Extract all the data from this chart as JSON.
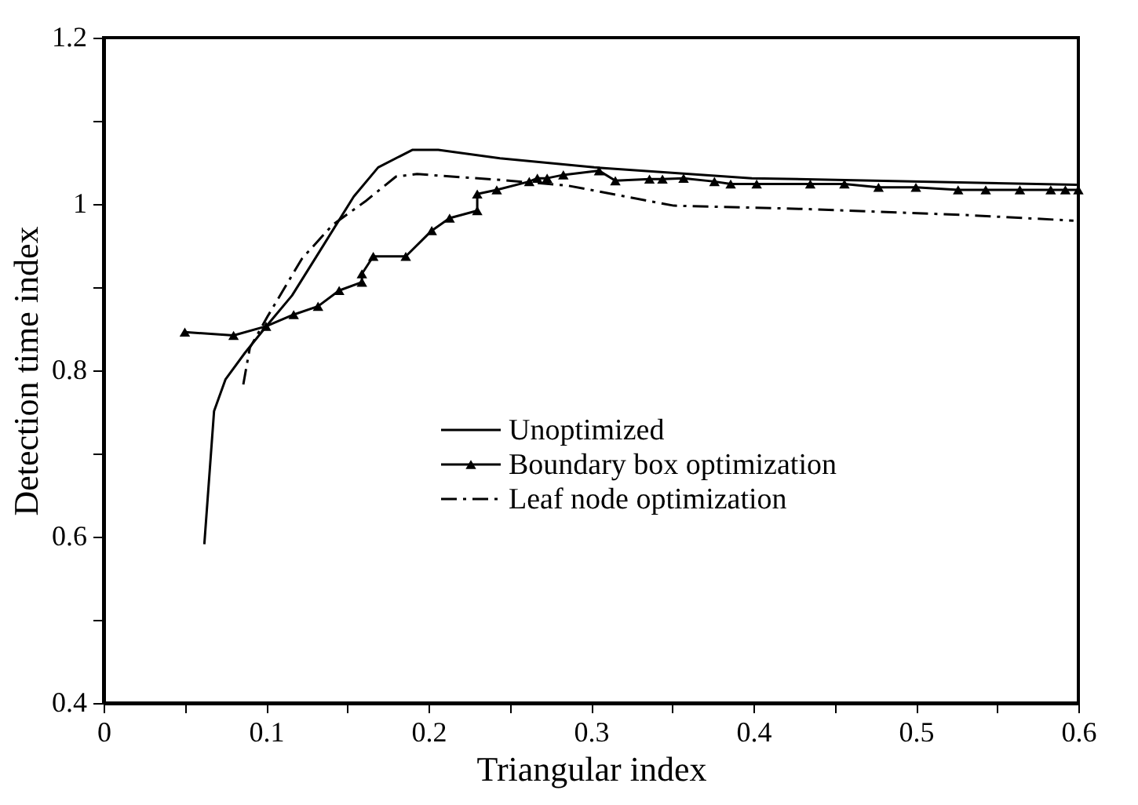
{
  "chart_data": {
    "type": "line",
    "xlabel": "Triangular index",
    "ylabel": "Detection time index",
    "xlim": [
      0,
      0.6
    ],
    "ylim": [
      0.4,
      1.2
    ],
    "xticks": [
      0,
      {
        "value": 0.05,
        "label": null
      },
      0.1,
      {
        "value": 0.15,
        "label": null
      },
      0.2,
      {
        "value": 0.25,
        "label": null
      },
      0.3,
      {
        "value": 0.35,
        "label": null
      },
      0.4,
      {
        "value": 0.45,
        "label": null
      },
      0.5,
      {
        "value": 0.55,
        "label": null
      },
      0.6
    ],
    "yticks": [
      0.4,
      {
        "value": 0.5,
        "label": null
      },
      0.6,
      {
        "value": 0.7,
        "label": null
      },
      0.8,
      {
        "value": 0.9,
        "label": null
      },
      1,
      {
        "value": 1.1,
        "label": null
      },
      1.2
    ],
    "grid": false,
    "legend": "right",
    "series": [
      {
        "name": "Unoptimized",
        "color": "#000000",
        "line_style": "solid",
        "marker": "none",
        "x": [
          0.062,
          0.068,
          0.075,
          0.087,
          0.101,
          0.116,
          0.132,
          0.154,
          0.169,
          0.19,
          0.206,
          0.244,
          0.302,
          0.399,
          0.599
        ],
        "values": [
          0.591,
          0.751,
          0.789,
          0.821,
          0.855,
          0.89,
          0.94,
          1.009,
          1.044,
          1.065,
          1.065,
          1.055,
          1.044,
          1.031,
          1.023
        ]
      },
      {
        "name": "Boundary box optimization",
        "color": "#000000",
        "line_style": "solid",
        "marker": "triangle",
        "x": [
          0.05,
          0.08,
          0.1,
          0.117,
          0.132,
          0.145,
          0.159,
          0.159,
          0.166,
          0.186,
          0.202,
          0.213,
          0.23,
          0.23,
          0.242,
          0.262,
          0.267,
          0.273,
          0.283,
          0.305,
          0.315,
          0.336,
          0.344,
          0.357,
          0.376,
          0.386,
          0.402,
          0.435,
          0.456,
          0.477,
          0.5,
          0.526,
          0.543,
          0.564,
          0.583,
          0.592,
          0.6
        ],
        "values": [
          0.846,
          0.842,
          0.853,
          0.867,
          0.877,
          0.896,
          0.906,
          0.916,
          0.937,
          0.937,
          0.968,
          0.983,
          0.992,
          1.012,
          1.017,
          1.027,
          1.031,
          1.031,
          1.035,
          1.04,
          1.028,
          1.03,
          1.03,
          1.031,
          1.027,
          1.024,
          1.024,
          1.024,
          1.024,
          1.02,
          1.02,
          1.017,
          1.017,
          1.017,
          1.017,
          1.017,
          1.017
        ]
      },
      {
        "name": "Leaf node optimization",
        "color": "#000000",
        "line_style": "dashdot",
        "marker": "none",
        "x": [
          0.086,
          0.09,
          0.101,
          0.122,
          0.141,
          0.161,
          0.18,
          0.193,
          0.244,
          0.286,
          0.351,
          0.431,
          0.528,
          0.597
        ],
        "values": [
          0.783,
          0.827,
          0.865,
          0.934,
          0.975,
          1.003,
          1.033,
          1.036,
          1.029,
          1.022,
          0.998,
          0.994,
          0.987,
          0.98
        ]
      }
    ]
  }
}
